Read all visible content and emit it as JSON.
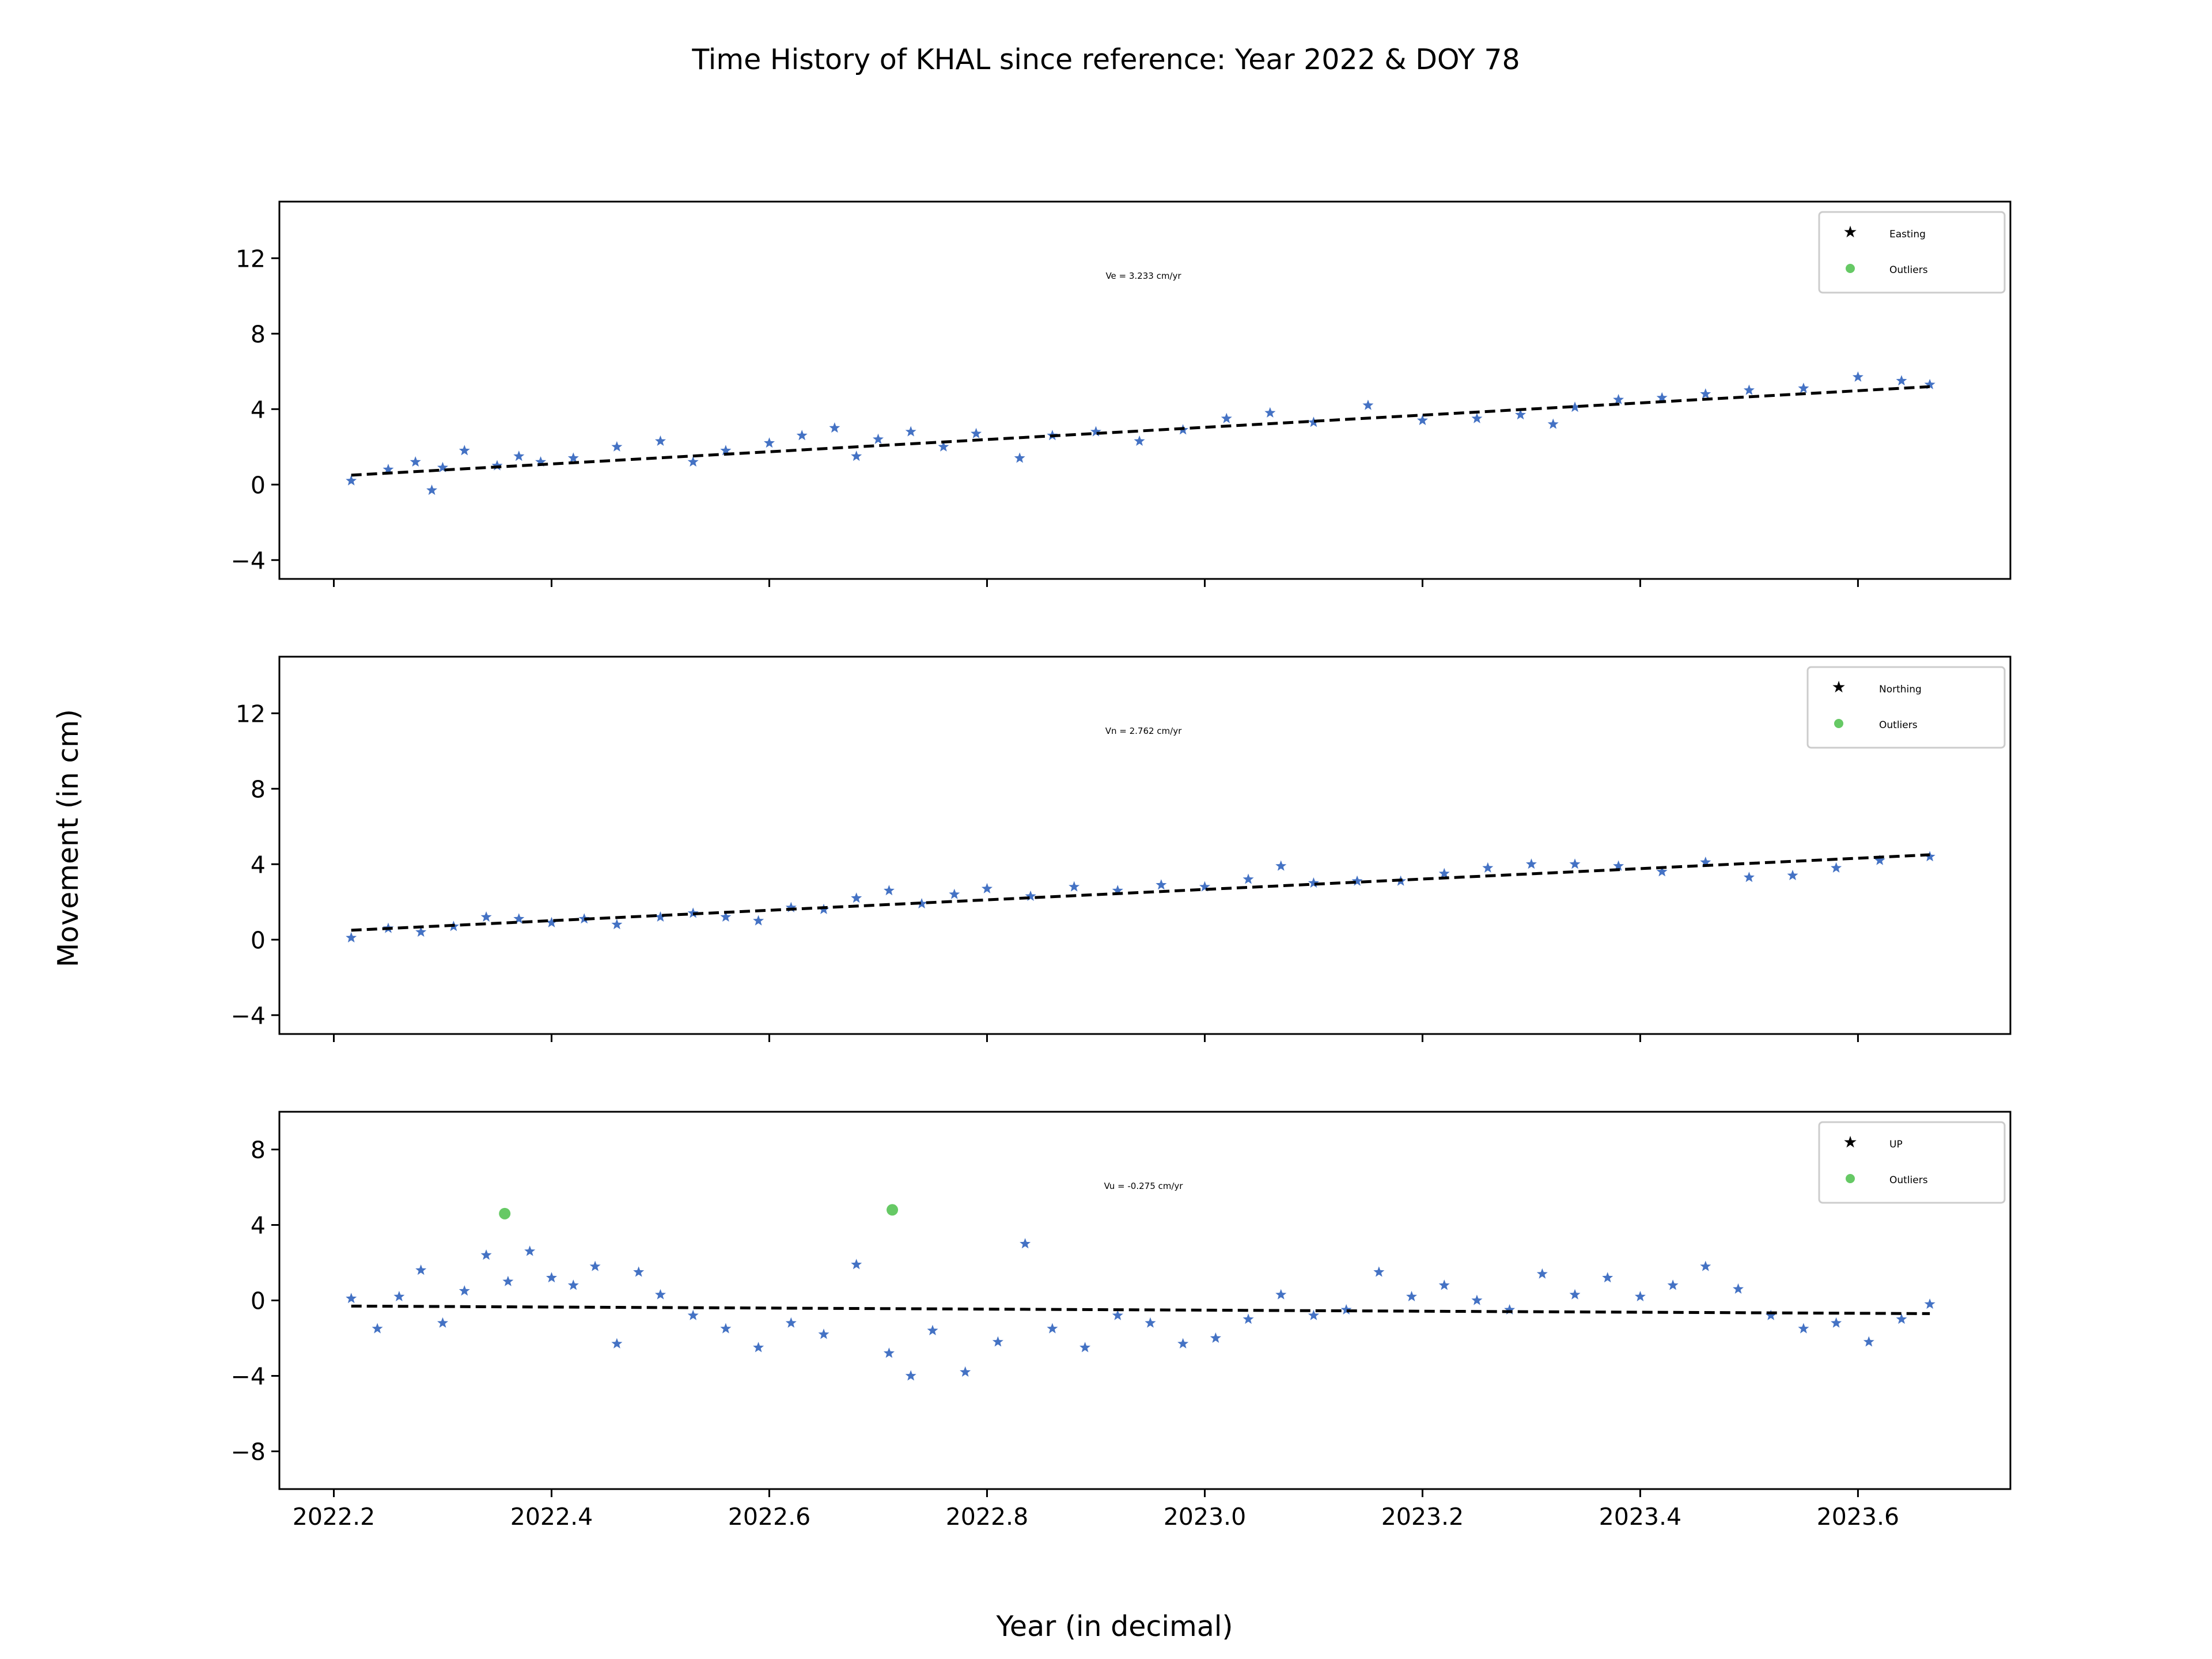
{
  "figure": {
    "title": "Time History of KHAL since reference: Year 2022 & DOY 78",
    "xlabel": "Year (in decimal)",
    "ylabel": "Movement (in cm)"
  },
  "chart_data": [
    {
      "type": "scatter",
      "component": "Easting",
      "velocity_text": "Ve =  3.233 cm/yr",
      "xlim": [
        2022.15,
        2023.74
      ],
      "ylim": [
        -5,
        15
      ],
      "yticks": [
        -4,
        0,
        4,
        8,
        12
      ],
      "xticks": [
        2022.2,
        2022.4,
        2022.6,
        2022.8,
        2023.0,
        2023.2,
        2023.4,
        2023.6
      ],
      "xticklabels_shown": false,
      "trend": {
        "x": [
          2022.216,
          2023.666
        ],
        "y": [
          0.5,
          5.19
        ]
      },
      "series": [
        {
          "name": "Easting",
          "marker": "star",
          "color": "#4472c4",
          "x": [
            2022.216,
            2022.25,
            2022.275,
            2022.29,
            2022.3,
            2022.32,
            2022.35,
            2022.37,
            2022.39,
            2022.42,
            2022.46,
            2022.5,
            2022.53,
            2022.56,
            2022.6,
            2022.63,
            2022.66,
            2022.68,
            2022.7,
            2022.73,
            2022.76,
            2022.79,
            2022.83,
            2022.86,
            2022.9,
            2022.94,
            2022.98,
            2023.02,
            2023.06,
            2023.1,
            2023.15,
            2023.2,
            2023.25,
            2023.29,
            2023.32,
            2023.34,
            2023.38,
            2023.42,
            2023.46,
            2023.5,
            2023.55,
            2023.6,
            2023.64,
            2023.666
          ],
          "y": [
            0.2,
            0.8,
            1.2,
            -0.3,
            0.9,
            1.8,
            1.0,
            1.5,
            1.2,
            1.4,
            2.0,
            2.3,
            1.2,
            1.8,
            2.2,
            2.6,
            3.0,
            1.5,
            2.4,
            2.8,
            2.0,
            2.7,
            1.4,
            2.6,
            2.8,
            2.3,
            2.9,
            3.5,
            3.8,
            3.3,
            4.2,
            3.4,
            3.5,
            3.7,
            3.2,
            4.1,
            4.5,
            4.6,
            4.8,
            5.0,
            5.1,
            5.7,
            5.5,
            5.3
          ]
        },
        {
          "name": "Outliers",
          "marker": "circle",
          "color": "#66c965",
          "x": [],
          "y": []
        }
      ]
    },
    {
      "type": "scatter",
      "component": "Northing",
      "velocity_text": "Vn =  2.762 cm/yr",
      "xlim": [
        2022.15,
        2023.74
      ],
      "ylim": [
        -5,
        15
      ],
      "yticks": [
        -4,
        0,
        4,
        8,
        12
      ],
      "xticks": [
        2022.2,
        2022.4,
        2022.6,
        2022.8,
        2023.0,
        2023.2,
        2023.4,
        2023.6
      ],
      "xticklabels_shown": false,
      "trend": {
        "x": [
          2022.216,
          2023.666
        ],
        "y": [
          0.5,
          4.5
        ]
      },
      "series": [
        {
          "name": "Northing",
          "marker": "star",
          "color": "#4472c4",
          "x": [
            2022.216,
            2022.25,
            2022.28,
            2022.31,
            2022.34,
            2022.37,
            2022.4,
            2022.43,
            2022.46,
            2022.5,
            2022.53,
            2022.56,
            2022.59,
            2022.62,
            2022.65,
            2022.68,
            2022.71,
            2022.74,
            2022.77,
            2022.8,
            2022.84,
            2022.88,
            2022.92,
            2022.96,
            2023.0,
            2023.04,
            2023.07,
            2023.1,
            2023.14,
            2023.18,
            2023.22,
            2023.26,
            2023.3,
            2023.34,
            2023.38,
            2023.42,
            2023.46,
            2023.5,
            2023.54,
            2023.58,
            2023.62,
            2023.666
          ],
          "y": [
            0.1,
            0.6,
            0.4,
            0.7,
            1.2,
            1.1,
            0.9,
            1.1,
            0.8,
            1.2,
            1.4,
            1.2,
            1.0,
            1.7,
            1.6,
            2.2,
            2.6,
            1.9,
            2.4,
            2.7,
            2.3,
            2.8,
            2.6,
            2.9,
            2.8,
            3.2,
            3.9,
            3.0,
            3.1,
            3.1,
            3.5,
            3.8,
            4.0,
            4.0,
            3.9,
            3.6,
            4.1,
            3.3,
            3.4,
            3.8,
            4.2,
            4.4
          ]
        },
        {
          "name": "Outliers",
          "marker": "circle",
          "color": "#66c965",
          "x": [],
          "y": []
        }
      ]
    },
    {
      "type": "scatter",
      "component": "UP",
      "velocity_text": "Vu = -0.275 cm/yr",
      "xlim": [
        2022.15,
        2023.74
      ],
      "ylim": [
        -10,
        10
      ],
      "yticks": [
        -8,
        -4,
        0,
        4,
        8
      ],
      "xticks": [
        2022.2,
        2022.4,
        2022.6,
        2022.8,
        2023.0,
        2023.2,
        2023.4,
        2023.6
      ],
      "xticklabels": [
        "2022.2",
        "2022.4",
        "2022.6",
        "2022.8",
        "2023.0",
        "2023.2",
        "2023.4",
        "2023.6"
      ],
      "xticklabels_shown": true,
      "trend": {
        "x": [
          2022.216,
          2023.666
        ],
        "y": [
          -0.3,
          -0.7
        ]
      },
      "series": [
        {
          "name": "UP",
          "marker": "star",
          "color": "#4472c4",
          "x": [
            2022.216,
            2022.24,
            2022.26,
            2022.28,
            2022.3,
            2022.32,
            2022.34,
            2022.36,
            2022.38,
            2022.4,
            2022.42,
            2022.44,
            2022.46,
            2022.48,
            2022.5,
            2022.53,
            2022.56,
            2022.59,
            2022.62,
            2022.65,
            2022.68,
            2022.71,
            2022.73,
            2022.75,
            2022.78,
            2022.81,
            2022.835,
            2022.86,
            2022.89,
            2022.92,
            2022.95,
            2022.98,
            2023.01,
            2023.04,
            2023.07,
            2023.1,
            2023.13,
            2023.16,
            2023.19,
            2023.22,
            2023.25,
            2023.28,
            2023.31,
            2023.34,
            2023.37,
            2023.4,
            2023.43,
            2023.46,
            2023.49,
            2023.52,
            2023.55,
            2023.58,
            2023.61,
            2023.64,
            2023.666
          ],
          "y": [
            0.1,
            -1.5,
            0.2,
            1.6,
            -1.2,
            0.5,
            2.4,
            1.0,
            2.6,
            1.2,
            0.8,
            1.8,
            -2.3,
            1.5,
            0.3,
            -0.8,
            -1.5,
            -2.5,
            -1.2,
            -1.8,
            1.9,
            -2.8,
            -4.0,
            -1.6,
            -3.8,
            -2.2,
            3.0,
            -1.5,
            -2.5,
            -0.8,
            -1.2,
            -2.3,
            -2.0,
            -1.0,
            0.3,
            -0.8,
            -0.5,
            1.5,
            0.2,
            0.8,
            0.0,
            -0.5,
            1.4,
            0.3,
            1.2,
            0.2,
            0.8,
            1.8,
            0.6,
            -0.8,
            -1.5,
            -1.2,
            -2.2,
            -1.0,
            -0.2
          ]
        },
        {
          "name": "Outliers",
          "marker": "circle",
          "color": "#66c965",
          "x": [
            2022.357,
            2022.713
          ],
          "y": [
            4.6,
            4.8
          ]
        }
      ]
    }
  ],
  "colors": {
    "series": "#4472c4",
    "outlier": "#66c965",
    "trend": "#000000"
  }
}
